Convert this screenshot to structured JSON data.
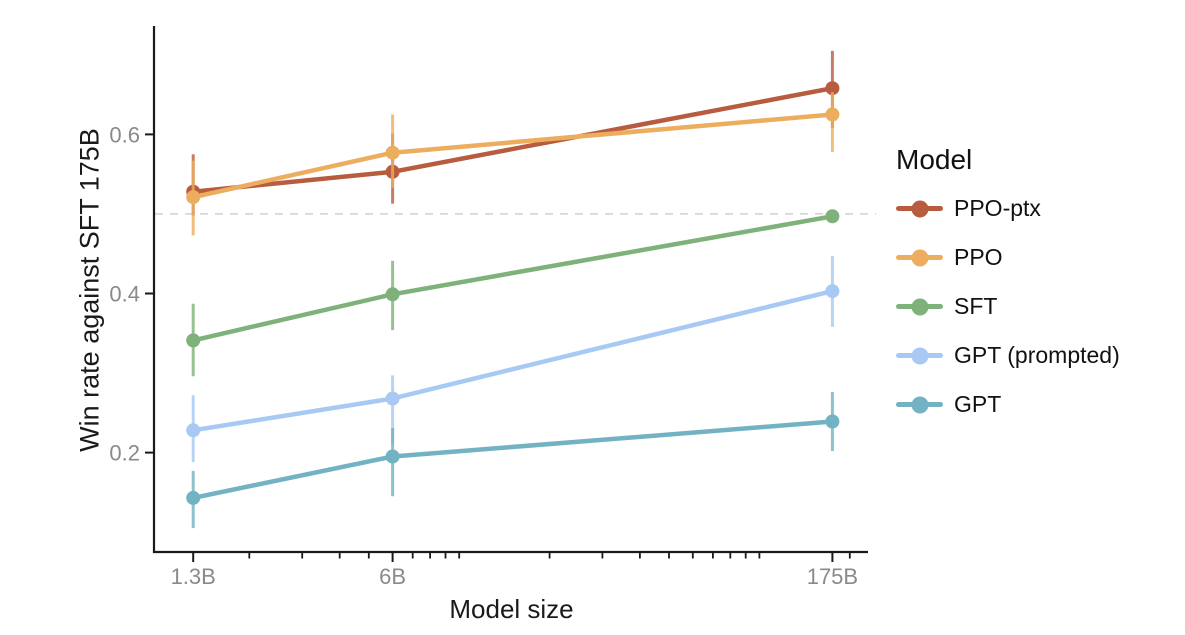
{
  "chart_data": {
    "type": "line",
    "title": "",
    "xlabel": "Model size",
    "ylabel": "Win rate against SFT 175B",
    "legend_title": "Model",
    "legend_position": "right",
    "grid": false,
    "x_scale": "log",
    "x": [
      1.3,
      6,
      175
    ],
    "x_tick_labels": [
      "1.3B",
      "6B",
      "175B"
    ],
    "x_minor_ticks": [
      2,
      3,
      4,
      5,
      7,
      8,
      9,
      10,
      20,
      30,
      40,
      50,
      60,
      70,
      80,
      90,
      100,
      200
    ],
    "xlim": [
      0.97,
      230
    ],
    "y_ticks": [
      0.2,
      0.4,
      0.6
    ],
    "y_tick_labels": [
      "0.2",
      "0.4",
      "0.6"
    ],
    "ylim": [
      0.075,
      0.735
    ],
    "reference_line_y": 0.5,
    "series": [
      {
        "name": "PPO-ptx",
        "color": "#b85c40",
        "values": [
          0.528,
          0.553,
          0.658
        ],
        "err_low": [
          0.498,
          0.513,
          0.608
        ],
        "err_high": [
          0.575,
          0.601,
          0.705
        ]
      },
      {
        "name": "PPO",
        "color": "#ecae5e",
        "values": [
          0.521,
          0.577,
          0.625
        ],
        "err_low": [
          0.473,
          0.533,
          0.578
        ],
        "err_high": [
          0.567,
          0.625,
          0.653
        ]
      },
      {
        "name": "SFT",
        "color": "#7fb27a",
        "values": [
          0.341,
          0.399,
          0.497
        ],
        "err_low": [
          0.296,
          0.354,
          0.497
        ],
        "err_high": [
          0.387,
          0.441,
          0.497
        ]
      },
      {
        "name": "GPT (prompted)",
        "color": "#a7c9f4",
        "values": [
          0.228,
          0.268,
          0.403
        ],
        "err_low": [
          0.188,
          0.21,
          0.358
        ],
        "err_high": [
          0.272,
          0.297,
          0.447
        ]
      },
      {
        "name": "GPT",
        "color": "#72b2c3",
        "values": [
          0.143,
          0.195,
          0.239
        ],
        "err_low": [
          0.105,
          0.145,
          0.202
        ],
        "err_high": [
          0.177,
          0.231,
          0.276
        ]
      }
    ]
  },
  "styles": {
    "background": "#ffffff",
    "axis_color": "#1a1a1a",
    "tick_label_color": "#8a8a8a",
    "reference_line_color": "#d8d8d8"
  }
}
